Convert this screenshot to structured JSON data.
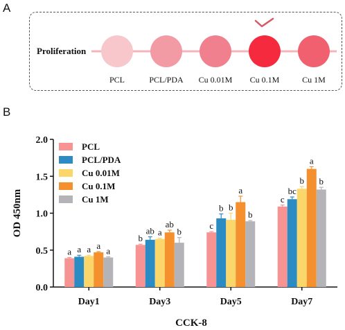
{
  "panel_a": {
    "letter": "A",
    "row_label": "Proliferation",
    "circles": [
      {
        "label": "PCL",
        "color": "#f8c7cc"
      },
      {
        "label": "PCL/PDA",
        "color": "#f29ba5"
      },
      {
        "label": "Cu 0.01M",
        "color": "#f0808d"
      },
      {
        "label": "Cu 0.1M",
        "color": "#f52a3e",
        "checked": true
      },
      {
        "label": "Cu 1M",
        "color": "#f0606f"
      }
    ],
    "check_icon": "checkmark-icon"
  },
  "chart_data": {
    "letter": "B",
    "type": "bar",
    "title": "CCK-8",
    "xlabel": "CCK-8",
    "ylabel": "OD 450nm",
    "ylim": [
      0,
      2.0
    ],
    "yticks": [
      "0.0",
      "0.5",
      "1.0",
      "1.5",
      "2.0"
    ],
    "grid": false,
    "legend_position": "top-left",
    "categories": [
      "Day1",
      "Day3",
      "Day5",
      "Day7"
    ],
    "series": [
      {
        "name": "PCL",
        "color": "#f79393",
        "values": [
          0.39,
          0.57,
          0.74,
          1.09
        ],
        "errors": [
          0.01,
          0.01,
          0.01,
          0.02
        ],
        "letters": [
          "a",
          "b",
          "c",
          "c"
        ]
      },
      {
        "name": "PCL/PDA",
        "color": "#2b8cc4",
        "values": [
          0.41,
          0.64,
          0.93,
          1.19
        ],
        "errors": [
          0.02,
          0.04,
          0.06,
          0.03
        ],
        "letters": [
          "a",
          "ab",
          "b",
          "bc"
        ]
      },
      {
        "name": "Cu 0.01M",
        "color": "#fad66b",
        "values": [
          0.42,
          0.65,
          0.91,
          1.33
        ],
        "errors": [
          0.01,
          0.01,
          0.09,
          0.03
        ],
        "letters": [
          "a",
          "a",
          "b",
          "b"
        ]
      },
      {
        "name": "Cu 0.1M",
        "color": "#f5902e",
        "values": [
          0.47,
          0.74,
          1.15,
          1.6
        ],
        "errors": [
          0.01,
          0.03,
          0.08,
          0.03
        ],
        "letters": [
          "a",
          "ab",
          "a",
          "a"
        ]
      },
      {
        "name": "Cu 1M",
        "color": "#b4b4b8",
        "values": [
          0.4,
          0.6,
          0.89,
          1.32
        ],
        "errors": [
          0.01,
          0.07,
          0.01,
          0.03
        ],
        "letters": [
          "a",
          "b",
          "b",
          "b"
        ]
      }
    ]
  }
}
